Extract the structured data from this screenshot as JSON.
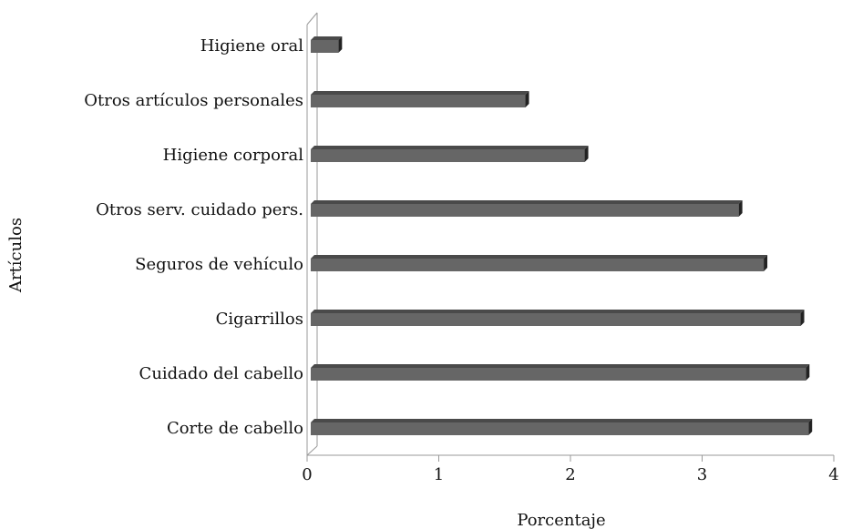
{
  "chart_data": {
    "type": "bar",
    "orientation": "horizontal",
    "categories": [
      "Higiene oral",
      "Otros artículos personales",
      "Higiene corporal",
      "Otros serv. cuidado pers.",
      "Seguros de vehículo",
      "Cigarrillos",
      "Cuidado del cabello",
      "Corte de cabello"
    ],
    "values": [
      0.21,
      1.63,
      2.08,
      3.25,
      3.44,
      3.72,
      3.76,
      3.78
    ],
    "color": "#666666",
    "xlabel": "Porcentaje",
    "ylabel": "Artículos",
    "xlim": [
      0,
      4
    ],
    "xticks": [
      0,
      1,
      2,
      3,
      4
    ],
    "grid": false
  }
}
